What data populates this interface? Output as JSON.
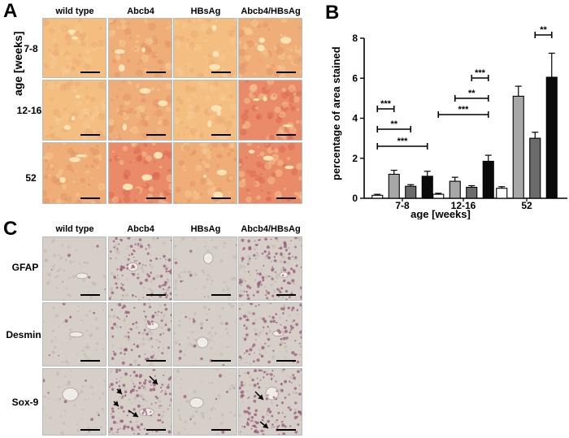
{
  "panels": {
    "A": {
      "letter": "A",
      "columns": [
        "wild type",
        "Abcb4",
        "HBsAg",
        "Abcb4/HBsAg"
      ],
      "row_axis_label": "age [weeks]",
      "rows": [
        "7-8",
        "12-16",
        "52"
      ],
      "colors": {
        "light": "#f3be80",
        "medium": "#efad78",
        "strong": "#e98a68"
      }
    },
    "B": {
      "letter": "B",
      "axis_label_y": "percentage of area stained",
      "axis_label_x": "age [weeks]"
    },
    "C": {
      "letter": "C",
      "columns": [
        "wild type",
        "Abcb4",
        "HBsAg",
        "Abcb4/HBsAg"
      ],
      "rows": [
        "GFAP",
        "Desmin",
        "Sox-9"
      ],
      "colors": {
        "background": "#d6cfc8",
        "stain": "#9a5a7a"
      }
    }
  },
  "chart_data": {
    "type": "bar",
    "title": "",
    "xlabel": "age [weeks]",
    "ylabel": "percentage of area stained",
    "categories": [
      "7-8",
      "12-16",
      "52"
    ],
    "ylim": [
      0,
      8
    ],
    "yticks": [
      0,
      2,
      4,
      6,
      8
    ],
    "grid": false,
    "series": [
      {
        "color": "#ffffff",
        "values": [
          0.15,
          0.2,
          0.5
        ],
        "errors": [
          0.05,
          0.05,
          0.08
        ]
      },
      {
        "color": "#a7a7a7",
        "values": [
          1.2,
          0.85,
          5.1
        ],
        "errors": [
          0.2,
          0.2,
          0.5
        ]
      },
      {
        "color": "#6b6b6b",
        "values": [
          0.6,
          0.55,
          3.0
        ],
        "errors": [
          0.08,
          0.08,
          0.3
        ]
      },
      {
        "color": "#0a0a0a",
        "values": [
          1.1,
          1.85,
          6.05
        ],
        "errors": [
          0.25,
          0.3,
          1.2
        ]
      }
    ],
    "significance": [
      {
        "group": 0,
        "from": 0,
        "to": 1,
        "label": "***"
      },
      {
        "group": 0,
        "from": 0,
        "to": 2,
        "label": "**"
      },
      {
        "group": 0,
        "from": 0,
        "to": 3,
        "label": "***"
      },
      {
        "group": 1,
        "from": 2,
        "to": 3,
        "label": "***"
      },
      {
        "group": 1,
        "from": 1,
        "to": 3,
        "label": "**"
      },
      {
        "group": 1,
        "from": 0,
        "to": 3,
        "label": "***"
      },
      {
        "group": 2,
        "from": 2,
        "to": 3,
        "label": "**"
      }
    ]
  }
}
